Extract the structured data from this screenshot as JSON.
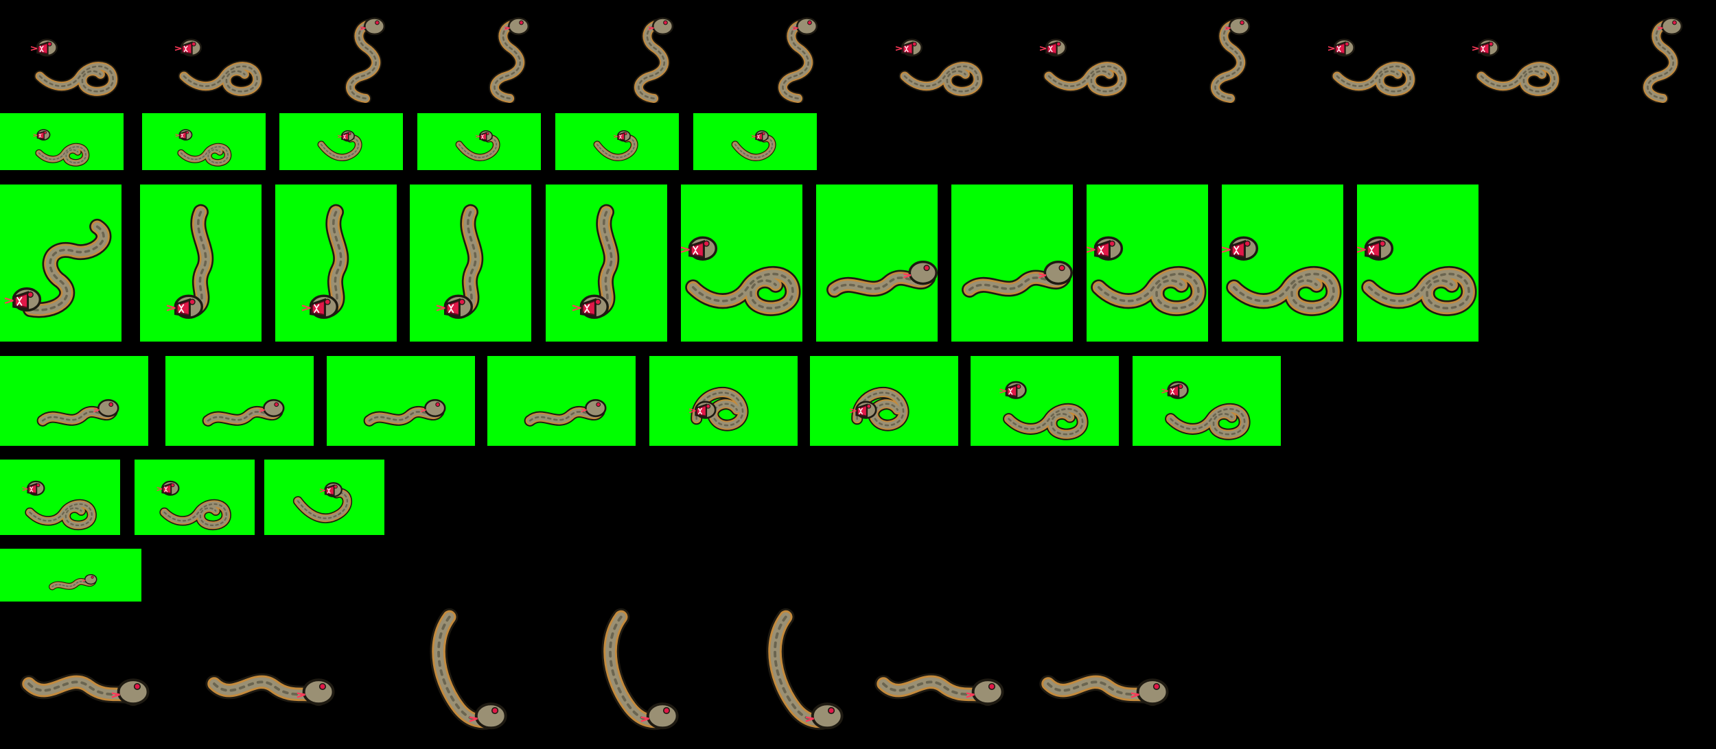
{
  "sheet": {
    "background": "#000000",
    "frame_key_color": "#00ff00",
    "sprite": "snake",
    "colors": {
      "body": "#9a9074",
      "body_shade": "#6b6550",
      "belly": "#c48a3c",
      "outline": "#1e1a12",
      "mouth": "#e01848",
      "mouth_dark": "#5c0a1e",
      "teeth": "#ffffff",
      "eye": "#e01848",
      "tongue": "#ff3a5a"
    }
  },
  "rows": [
    {
      "name": "row-1",
      "frames": 12,
      "backdrop": "none"
    },
    {
      "name": "row-2",
      "frames": 6,
      "backdrop": "green"
    },
    {
      "name": "row-3",
      "frames": 11,
      "backdrop": "green"
    },
    {
      "name": "row-4",
      "frames": 8,
      "backdrop": "green"
    },
    {
      "name": "row-5",
      "frames": 3,
      "backdrop": "green"
    },
    {
      "name": "row-6",
      "frames": 1,
      "backdrop": "green"
    },
    {
      "name": "row-7",
      "frames": 7,
      "backdrop": "none"
    }
  ]
}
